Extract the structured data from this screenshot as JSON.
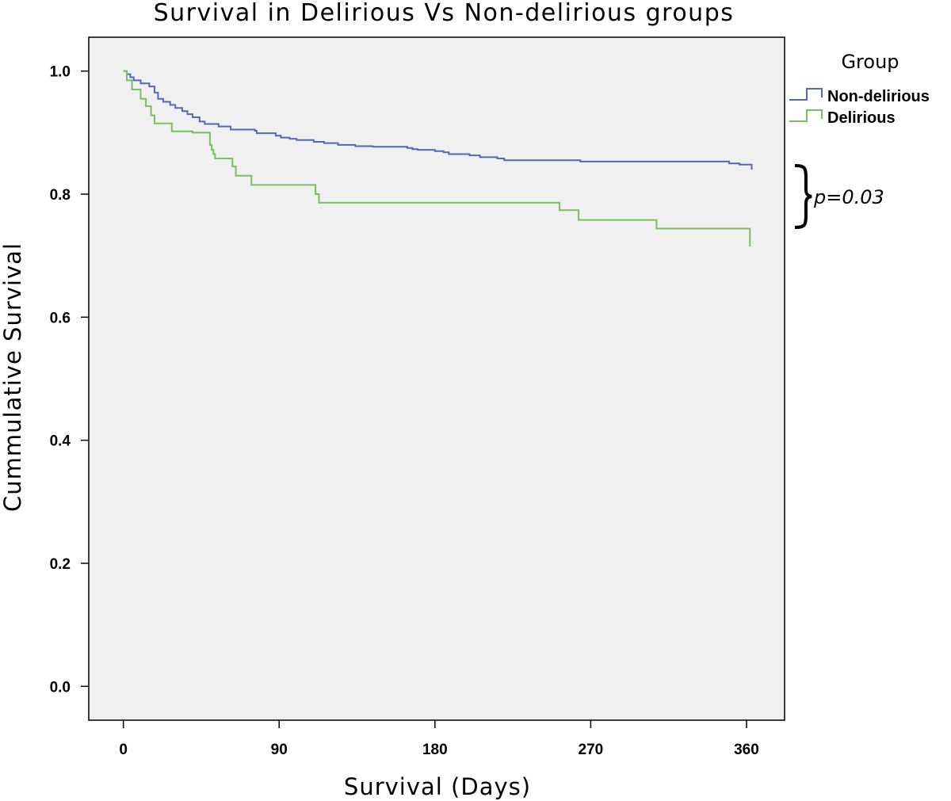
{
  "chart_data": {
    "type": "line",
    "subtype": "kaplan-meier-step",
    "title": "Survival in Delirious Vs Non-delirious groups",
    "xlabel": "Survival (Days)",
    "ylabel": "Cummulative Survival",
    "xlim": [
      -20,
      382
    ],
    "ylim": [
      -0.055,
      1.055
    ],
    "x_ticks": [
      0,
      90,
      180,
      270,
      360
    ],
    "x_tick_labels": [
      "0",
      "90",
      "180",
      "270",
      "360"
    ],
    "y_ticks": [
      0.0,
      0.2,
      0.4,
      0.6,
      0.8,
      1.0
    ],
    "y_tick_labels": [
      "0.0",
      "0.2",
      "0.4",
      "0.6",
      "0.8",
      "1.0"
    ],
    "grid": false,
    "background": "#f0f0f0",
    "legend": {
      "title": "Group",
      "position": "top-right, outside plot"
    },
    "annotation": "p=0.03",
    "series": [
      {
        "name": "Non-delirious",
        "color": "#5566b8",
        "points": [
          [
            0,
            1.0
          ],
          [
            2,
            0.995
          ],
          [
            4,
            0.99
          ],
          [
            6,
            0.985
          ],
          [
            10,
            0.98
          ],
          [
            15,
            0.975
          ],
          [
            18,
            0.965
          ],
          [
            20,
            0.955
          ],
          [
            23,
            0.95
          ],
          [
            27,
            0.945
          ],
          [
            30,
            0.94
          ],
          [
            34,
            0.935
          ],
          [
            37,
            0.93
          ],
          [
            40,
            0.925
          ],
          [
            44,
            0.918
          ],
          [
            47,
            0.914
          ],
          [
            55,
            0.91
          ],
          [
            62,
            0.905
          ],
          [
            76,
            0.903
          ],
          [
            77,
            0.899
          ],
          [
            88,
            0.895
          ],
          [
            91,
            0.892
          ],
          [
            96,
            0.89
          ],
          [
            100,
            0.888
          ],
          [
            110,
            0.885
          ],
          [
            116,
            0.883
          ],
          [
            124,
            0.88
          ],
          [
            134,
            0.878
          ],
          [
            144,
            0.877
          ],
          [
            164,
            0.875
          ],
          [
            167,
            0.873
          ],
          [
            170,
            0.872
          ],
          [
            180,
            0.87
          ],
          [
            185,
            0.868
          ],
          [
            188,
            0.865
          ],
          [
            200,
            0.863
          ],
          [
            206,
            0.86
          ],
          [
            216,
            0.858
          ],
          [
            220,
            0.855
          ],
          [
            264,
            0.853
          ],
          [
            300,
            0.853
          ],
          [
            350,
            0.85
          ],
          [
            356,
            0.848
          ],
          [
            363,
            0.84
          ]
        ]
      },
      {
        "name": "Delirious",
        "color": "#77bf60",
        "points": [
          [
            0,
            1.0
          ],
          [
            2,
            0.985
          ],
          [
            5,
            0.97
          ],
          [
            10,
            0.955
          ],
          [
            13,
            0.943
          ],
          [
            16,
            0.928
          ],
          [
            18,
            0.915
          ],
          [
            28,
            0.902
          ],
          [
            40,
            0.9
          ],
          [
            50,
            0.88
          ],
          [
            51,
            0.872
          ],
          [
            52,
            0.865
          ],
          [
            53,
            0.858
          ],
          [
            63,
            0.845
          ],
          [
            65,
            0.83
          ],
          [
            74,
            0.815
          ],
          [
            111,
            0.8
          ],
          [
            113,
            0.786
          ],
          [
            193,
            0.786
          ],
          [
            252,
            0.774
          ],
          [
            263,
            0.758
          ],
          [
            308,
            0.744
          ],
          [
            362,
            0.715
          ]
        ]
      }
    ]
  }
}
